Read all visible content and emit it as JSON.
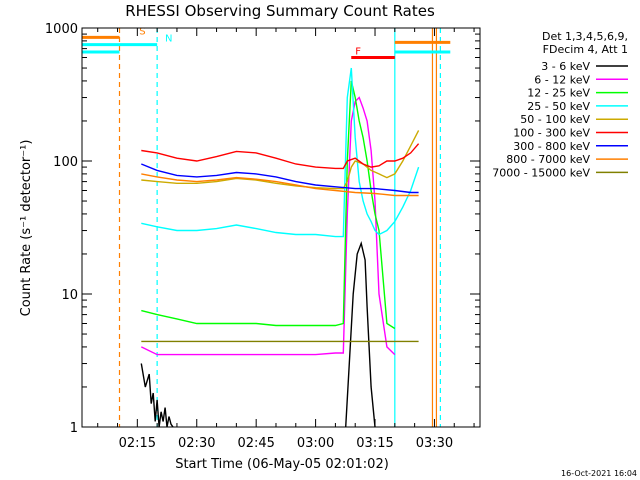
{
  "chart_data": {
    "type": "line",
    "title": "RHESSI Observing Summary Count Rates",
    "xlabel": "Start Time (06-May-05 02:01:02)",
    "ylabel": "Count Rate (s⁻¹ detector⁻¹)",
    "yscale": "log",
    "xlim": [
      "02:01:02",
      "03:41:30"
    ],
    "ylim": [
      1,
      1000
    ],
    "x_ticks": [
      "02:15",
      "02:30",
      "02:45",
      "03:00",
      "03:15",
      "03:30"
    ],
    "y_ticks": [
      "1",
      "10",
      "100",
      "1000"
    ],
    "legend_header": [
      "Det 1,3,4,5,6,9,",
      "FDecim 4, Att 1"
    ],
    "legend_position": "right",
    "footer": "16-Oct-2021 16:04",
    "x_units": "minutes after 02:00",
    "series": [
      {
        "name": "3 - 6 keV",
        "color": "#000000",
        "x": [
          16,
          17,
          18,
          18.5,
          19,
          19.5,
          20,
          20.5,
          21,
          21.5,
          22,
          22.5,
          23,
          23.5,
          24
        ],
        "y": [
          3,
          2,
          2.5,
          1.5,
          1.8,
          1.1,
          1.6,
          1,
          1.3,
          1.1,
          1.4,
          1,
          1.2,
          1.05,
          1
        ],
        "x2": [
          67.6,
          68.5,
          69.5,
          70.5,
          71.5,
          72.5,
          73,
          74,
          75
        ],
        "y2": [
          1,
          3,
          10,
          20,
          24,
          18,
          8,
          2,
          1
        ]
      },
      {
        "name": "6 - 12 keV",
        "color": "#ff00ff",
        "x": [
          16,
          20,
          25,
          30,
          35,
          40,
          45,
          50,
          55,
          60,
          65,
          67,
          68,
          69,
          70,
          71,
          72,
          73,
          74,
          75,
          76,
          78,
          80
        ],
        "y": [
          4,
          3.5,
          3.5,
          3.5,
          3.5,
          3.5,
          3.5,
          3.5,
          3.5,
          3.5,
          3.6,
          3.6,
          40,
          200,
          280,
          300,
          250,
          200,
          120,
          50,
          10,
          4,
          3.5
        ]
      },
      {
        "name": "12 - 25 keV",
        "color": "#00ff00",
        "x": [
          16,
          20,
          25,
          30,
          35,
          40,
          45,
          50,
          55,
          60,
          65,
          67,
          68,
          69,
          70,
          71,
          72,
          73,
          74,
          75,
          76,
          78,
          80
        ],
        "y": [
          7.5,
          7,
          6.5,
          6,
          6,
          6,
          6,
          5.8,
          5.8,
          5.8,
          5.8,
          6,
          100,
          400,
          300,
          200,
          150,
          100,
          60,
          40,
          30,
          6,
          5.5
        ]
      },
      {
        "name": "25 - 50 keV",
        "color": "#00ffff",
        "x": [
          16,
          20,
          25,
          30,
          35,
          40,
          45,
          50,
          55,
          60,
          65,
          67,
          68,
          69,
          70,
          71,
          72,
          73,
          74,
          75,
          76,
          78,
          80,
          82,
          84,
          86
        ],
        "y": [
          34,
          32,
          30,
          30,
          31,
          33,
          31,
          29,
          28,
          28,
          27,
          27,
          300,
          500,
          150,
          70,
          50,
          40,
          35,
          30,
          28,
          30,
          35,
          45,
          60,
          90
        ]
      },
      {
        "name": "50 - 100 keV",
        "color": "#ccaa00",
        "x": [
          16,
          20,
          25,
          30,
          35,
          40,
          45,
          50,
          55,
          60,
          65,
          67,
          68,
          69,
          70,
          72,
          74,
          76,
          78,
          80,
          82,
          84,
          86
        ],
        "y": [
          72,
          70,
          68,
          68,
          70,
          74,
          72,
          68,
          65,
          63,
          62,
          62,
          70,
          90,
          100,
          95,
          85,
          80,
          75,
          80,
          100,
          130,
          170
        ]
      },
      {
        "name": "100 - 300 keV",
        "color": "#ff0000",
        "x": [
          16,
          20,
          25,
          30,
          35,
          40,
          45,
          50,
          55,
          60,
          65,
          67,
          68,
          70,
          72,
          74,
          76,
          78,
          80,
          82,
          84,
          86
        ],
        "y": [
          120,
          115,
          105,
          100,
          108,
          118,
          115,
          105,
          95,
          90,
          88,
          88,
          100,
          105,
          95,
          90,
          92,
          100,
          100,
          105,
          115,
          135
        ]
      },
      {
        "name": "300 - 800 keV",
        "color": "#0000ff",
        "x": [
          16,
          20,
          25,
          30,
          35,
          40,
          45,
          50,
          55,
          60,
          65,
          70,
          75,
          80,
          84,
          86
        ],
        "y": [
          95,
          85,
          78,
          76,
          78,
          82,
          80,
          76,
          70,
          66,
          64,
          62,
          62,
          60,
          58,
          58
        ]
      },
      {
        "name": "800 - 7000 keV",
        "color": "#ff7f00",
        "x": [
          16,
          20,
          25,
          30,
          35,
          40,
          45,
          50,
          55,
          60,
          65,
          70,
          75,
          80,
          84,
          86
        ],
        "y": [
          80,
          76,
          72,
          70,
          72,
          75,
          73,
          70,
          66,
          62,
          60,
          58,
          57,
          55,
          55,
          55
        ]
      },
      {
        "name": "7000 - 15000 keV",
        "color": "#808000",
        "x": [
          16,
          20,
          25,
          30,
          35,
          40,
          45,
          50,
          55,
          60,
          65,
          70,
          75,
          80,
          84,
          86
        ],
        "y": [
          4.4,
          4.4,
          4.4,
          4.4,
          4.4,
          4.4,
          4.4,
          4.4,
          4.4,
          4.4,
          4.4,
          4.4,
          4.4,
          4.4,
          4.4,
          4.4
        ]
      }
    ],
    "annotations": [
      {
        "label": "S",
        "color": "#ff7f00",
        "x": 15.5,
        "y": 850,
        "bar_x": [
          0,
          10.5
        ]
      },
      {
        "label": "N",
        "color": "#00ffff",
        "x": 22,
        "y": 750,
        "bar_x": [
          0,
          20
        ]
      },
      {
        "label": "F",
        "color": "#ff0000",
        "x": 70,
        "y": 600,
        "bar_x": [
          69,
          80
        ]
      }
    ],
    "vertical_lines": [
      {
        "x": 10.5,
        "color": "#ff7f00",
        "style": "dashed"
      },
      {
        "x": 20,
        "color": "#00ffff",
        "style": "dashed"
      },
      {
        "x": 80,
        "color": "#00ffff",
        "style": "solid"
      },
      {
        "x": 89.5,
        "color": "#ff7f00",
        "style": "solid"
      },
      {
        "x": 90.5,
        "color": "#ff7f00",
        "style": "solid"
      },
      {
        "x": 91.5,
        "color": "#00ffff",
        "style": "dashed"
      }
    ],
    "top_bars": [
      {
        "color": "#ff7f00",
        "x": [
          80,
          94
        ],
        "y": 780
      },
      {
        "color": "#00ffff",
        "x": [
          80,
          94
        ],
        "y": 660
      },
      {
        "color": "#00ffff",
        "x": [
          0,
          10.5
        ],
        "y": 660
      }
    ]
  }
}
